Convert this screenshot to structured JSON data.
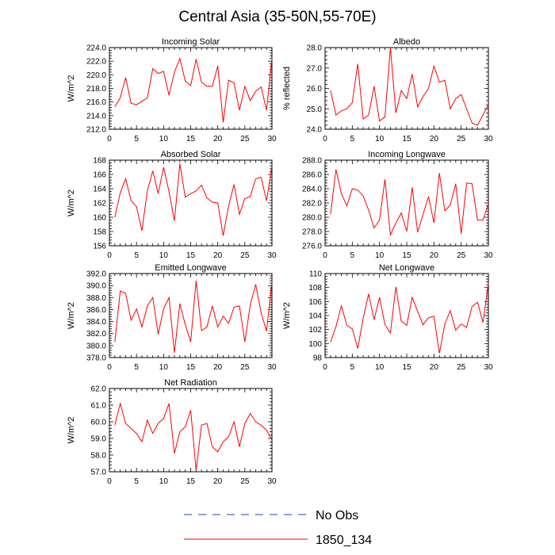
{
  "figure_title": "Central Asia (35-50N,55-70E)",
  "legend": [
    {
      "label": "No Obs",
      "color": "#1f3fbf",
      "dash": "dashed"
    },
    {
      "label": "1850_134",
      "color": "#ff0000",
      "dash": "solid"
    }
  ],
  "chart_data": [
    {
      "type": "line",
      "title": "Incoming Solar",
      "xlabel": "",
      "ylabel": "W/m^2",
      "xlim": [
        0,
        30
      ],
      "ylim": [
        212,
        224
      ],
      "xticks": [
        0,
        5,
        10,
        15,
        20,
        25,
        30
      ],
      "yticks": [
        212.0,
        214.0,
        216.0,
        218.0,
        220.0,
        222.0,
        224.0
      ],
      "ytick_labels": [
        "212.0",
        "214.0",
        "216.0",
        "218.0",
        "220.0",
        "222.0",
        "224.0"
      ],
      "series": [
        {
          "name": "1850_134",
          "color": "#ff0000",
          "x": [
            1,
            2,
            3,
            4,
            5,
            6,
            7,
            8,
            9,
            10,
            11,
            12,
            13,
            14,
            15,
            16,
            17,
            18,
            19,
            20,
            21,
            22,
            23,
            24,
            25,
            26,
            27,
            28,
            29,
            30
          ],
          "y": [
            215.3,
            216.6,
            219.6,
            215.8,
            215.6,
            216.1,
            216.6,
            220.9,
            220.2,
            220.5,
            217.0,
            220.4,
            222.4,
            219.1,
            218.4,
            222.3,
            218.9,
            218.3,
            218.3,
            221.3,
            213.0,
            219.2,
            218.8,
            214.8,
            218.3,
            216.2,
            217.6,
            218.2,
            214.8,
            222.5
          ]
        }
      ]
    },
    {
      "type": "line",
      "title": "Albedo",
      "xlabel": "",
      "ylabel": "% reflected",
      "xlim": [
        0,
        30
      ],
      "ylim": [
        24,
        28
      ],
      "xticks": [
        0,
        5,
        10,
        15,
        20,
        25,
        30
      ],
      "yticks": [
        24.0,
        25.0,
        26.0,
        27.0,
        28.0
      ],
      "ytick_labels": [
        "24.0",
        "25.0",
        "26.0",
        "27.0",
        "28.0"
      ],
      "series": [
        {
          "name": "1850_134",
          "color": "#ff0000",
          "x": [
            1,
            2,
            3,
            4,
            5,
            6,
            7,
            8,
            9,
            10,
            11,
            12,
            13,
            14,
            15,
            16,
            17,
            18,
            19,
            20,
            21,
            22,
            23,
            24,
            25,
            26,
            27,
            28,
            29,
            30
          ],
          "y": [
            25.9,
            24.7,
            24.9,
            25.0,
            25.3,
            27.2,
            24.5,
            24.7,
            26.1,
            24.4,
            24.6,
            28.0,
            24.8,
            25.9,
            25.5,
            26.7,
            25.1,
            25.6,
            26.0,
            27.1,
            26.3,
            26.4,
            25.0,
            25.5,
            25.7,
            25.0,
            24.3,
            24.2,
            24.7,
            25.2
          ]
        }
      ]
    },
    {
      "type": "line",
      "title": "Absorbed Solar",
      "xlabel": "",
      "ylabel": "W/m^2",
      "xlim": [
        0,
        30
      ],
      "ylim": [
        156,
        168
      ],
      "xticks": [
        0,
        5,
        10,
        15,
        20,
        25,
        30
      ],
      "yticks": [
        156,
        158,
        160,
        162,
        164,
        166,
        168
      ],
      "ytick_labels": [
        "156",
        "158",
        "160",
        "162",
        "164",
        "166",
        "168"
      ],
      "series": [
        {
          "name": "1850_134",
          "color": "#ff0000",
          "x": [
            1,
            2,
            3,
            4,
            5,
            6,
            7,
            8,
            9,
            10,
            11,
            12,
            13,
            14,
            15,
            16,
            17,
            18,
            19,
            20,
            21,
            22,
            23,
            24,
            25,
            26,
            27,
            28,
            29,
            30
          ],
          "y": [
            160.0,
            163.4,
            165.4,
            162.3,
            161.5,
            158.1,
            163.7,
            166.5,
            163.3,
            167.0,
            163.6,
            159.5,
            167.5,
            162.8,
            163.3,
            163.7,
            164.5,
            162.7,
            162.1,
            162.0,
            157.4,
            161.6,
            164.6,
            160.4,
            162.6,
            162.9,
            165.4,
            165.6,
            162.3,
            167.2
          ]
        }
      ]
    },
    {
      "type": "line",
      "title": "Incoming Longwave",
      "xlabel": "",
      "ylabel": "",
      "xlim": [
        0,
        30
      ],
      "ylim": [
        276,
        288
      ],
      "xticks": [
        0,
        5,
        10,
        15,
        20,
        25,
        30
      ],
      "yticks": [
        276.0,
        278.0,
        280.0,
        282.0,
        284.0,
        286.0,
        288.0
      ],
      "ytick_labels": [
        "276.0",
        "278.0",
        "280.0",
        "282.0",
        "284.0",
        "286.0",
        "288.0"
      ],
      "series": [
        {
          "name": "1850_134",
          "color": "#ff0000",
          "x": [
            1,
            2,
            3,
            4,
            5,
            6,
            7,
            8,
            9,
            10,
            11,
            12,
            13,
            14,
            15,
            16,
            17,
            18,
            19,
            20,
            21,
            22,
            23,
            24,
            25,
            26,
            27,
            28,
            29,
            30
          ],
          "y": [
            280.4,
            286.7,
            283.3,
            281.6,
            284.0,
            283.8,
            283.0,
            281.0,
            278.5,
            279.6,
            285.3,
            277.5,
            279.2,
            280.6,
            278.0,
            284.2,
            277.9,
            280.4,
            282.9,
            279.2,
            286.2,
            280.9,
            281.7,
            284.7,
            277.7,
            284.8,
            284.7,
            279.6,
            279.6,
            281.9
          ]
        }
      ]
    },
    {
      "type": "line",
      "title": "Emitted Longwave",
      "xlabel": "",
      "ylabel": "W/m^2",
      "xlim": [
        0,
        30
      ],
      "ylim": [
        378,
        392
      ],
      "xticks": [
        0,
        5,
        10,
        15,
        20,
        25,
        30
      ],
      "yticks": [
        378.0,
        380.0,
        382.0,
        384.0,
        386.0,
        388.0,
        390.0,
        392.0
      ],
      "ytick_labels": [
        "378.0",
        "380.0",
        "382.0",
        "384.0",
        "386.0",
        "388.0",
        "390.0",
        "392.0"
      ],
      "series": [
        {
          "name": "1850_134",
          "color": "#ff0000",
          "x": [
            1,
            2,
            3,
            4,
            5,
            6,
            7,
            8,
            9,
            10,
            11,
            12,
            13,
            14,
            15,
            16,
            17,
            18,
            19,
            20,
            21,
            22,
            23,
            24,
            25,
            26,
            27,
            28,
            29,
            30
          ],
          "y": [
            380.6,
            389.1,
            388.7,
            384.2,
            386.1,
            383.1,
            386.6,
            388.0,
            381.9,
            386.1,
            388.0,
            378.8,
            387.0,
            383.5,
            380.6,
            390.8,
            382.5,
            383.1,
            386.6,
            383.1,
            384.9,
            383.7,
            386.4,
            386.6,
            380.6,
            386.8,
            390.2,
            385.5,
            382.4,
            390.6
          ]
        }
      ]
    },
    {
      "type": "line",
      "title": "Net Longwave",
      "xlabel": "",
      "ylabel": "W/m^2",
      "xlim": [
        0,
        30
      ],
      "ylim": [
        98,
        110
      ],
      "xticks": [
        0,
        5,
        10,
        15,
        20,
        25,
        30
      ],
      "yticks": [
        98,
        100,
        102,
        104,
        106,
        108,
        110
      ],
      "ytick_labels": [
        "98",
        "100",
        "102",
        "104",
        "106",
        "108",
        "110"
      ],
      "series": [
        {
          "name": "1850_134",
          "color": "#ff0000",
          "x": [
            1,
            2,
            3,
            4,
            5,
            6,
            7,
            8,
            9,
            10,
            11,
            12,
            13,
            14,
            15,
            16,
            17,
            18,
            19,
            20,
            21,
            22,
            23,
            24,
            25,
            26,
            27,
            28,
            29,
            30
          ],
          "y": [
            100.2,
            102.4,
            105.4,
            102.6,
            102.1,
            99.3,
            103.6,
            107.1,
            103.4,
            106.6,
            102.7,
            101.5,
            108.1,
            103.2,
            102.6,
            106.6,
            104.6,
            102.7,
            103.7,
            103.9,
            98.6,
            102.8,
            104.7,
            101.9,
            102.8,
            102.3,
            105.3,
            105.9,
            103.0,
            108.6
          ]
        }
      ]
    },
    {
      "type": "line",
      "title": "Net Radiation",
      "xlabel": "",
      "ylabel": "W/m^2",
      "xlim": [
        0,
        30
      ],
      "ylim": [
        57,
        62
      ],
      "xticks": [
        0,
        5,
        10,
        15,
        20,
        25,
        30
      ],
      "yticks": [
        57.0,
        58.0,
        59.0,
        60.0,
        61.0,
        62.0
      ],
      "ytick_labels": [
        "57.0",
        "58.0",
        "59.0",
        "60.0",
        "61.0",
        "62.0"
      ],
      "series": [
        {
          "name": "1850_134",
          "color": "#ff0000",
          "x": [
            1,
            2,
            3,
            4,
            5,
            6,
            7,
            8,
            9,
            10,
            11,
            12,
            13,
            14,
            15,
            16,
            17,
            18,
            19,
            20,
            21,
            22,
            23,
            24,
            25,
            26,
            27,
            28,
            29,
            30
          ],
          "y": [
            59.8,
            61.1,
            59.9,
            59.6,
            59.3,
            58.8,
            60.1,
            59.3,
            59.9,
            60.2,
            61.1,
            58.1,
            59.4,
            59.7,
            60.7,
            57.1,
            59.8,
            59.9,
            58.5,
            58.2,
            58.8,
            59.1,
            60.0,
            58.5,
            59.9,
            60.5,
            60.0,
            59.8,
            59.5,
            58.9
          ]
        }
      ]
    }
  ]
}
